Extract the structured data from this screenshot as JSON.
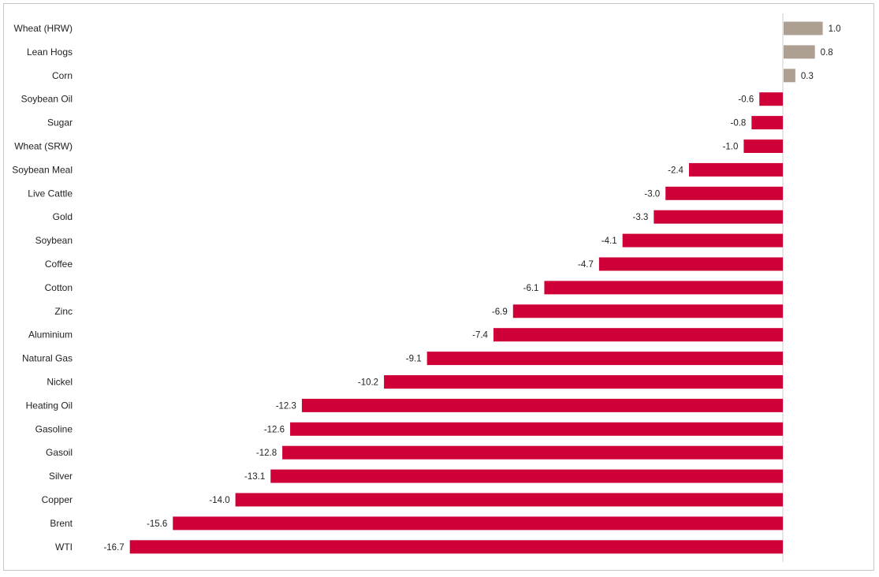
{
  "chart_data": {
    "type": "bar",
    "orientation": "horizontal",
    "title": "",
    "xlabel": "",
    "ylabel": "",
    "categories": [
      "Wheat (HRW)",
      "Lean Hogs",
      "Corn",
      "Soybean Oil",
      "Sugar",
      "Wheat (SRW)",
      "Soybean Meal",
      "Live Cattle",
      "Gold",
      "Soybean",
      "Coffee",
      "Cotton",
      "Zinc",
      "Aluminium",
      "Natural Gas",
      "Nickel",
      "Heating Oil",
      "Gasoline",
      "Gasoil",
      "Silver",
      "Copper",
      "Brent",
      "WTI"
    ],
    "values": [
      1.0,
      0.8,
      0.3,
      -0.6,
      -0.8,
      -1.0,
      -2.4,
      -3.0,
      -3.3,
      -4.1,
      -4.7,
      -6.1,
      -6.9,
      -7.4,
      -9.1,
      -10.2,
      -12.3,
      -12.6,
      -12.8,
      -13.1,
      -14.0,
      -15.6,
      -16.7
    ],
    "value_labels": [
      "1.0",
      "0.8",
      "0.3",
      "-0.6",
      "-0.8",
      "-1.0",
      "-2.4",
      "-3.0",
      "-3.3",
      "-4.1",
      "-4.7",
      "-6.1",
      "-6.9",
      "-7.4",
      "-9.1",
      "-10.2",
      "-12.3",
      "-12.6",
      "-12.8",
      "-13.1",
      "-14.0",
      "-15.6",
      "-16.7"
    ],
    "xlim": [
      -17,
      2
    ],
    "grid": false,
    "legend": "none",
    "colors": {
      "positive": "#ada092",
      "negative": "#cf0038",
      "axis": "#cccccc"
    }
  }
}
